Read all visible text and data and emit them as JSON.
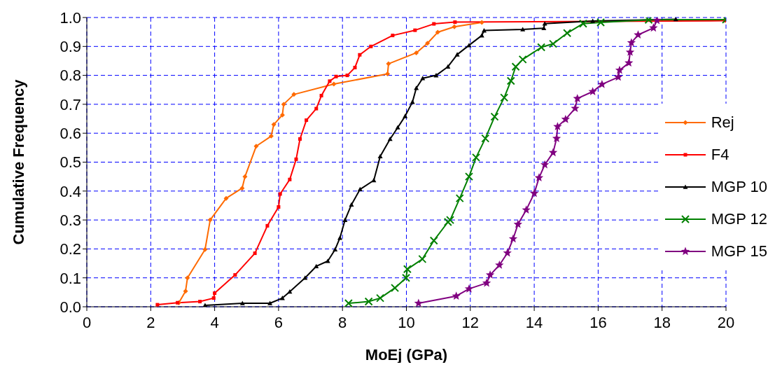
{
  "chart_data": {
    "type": "line",
    "xlabel": "MoEj (GPa)",
    "ylabel": "Cumulative Frequency",
    "xlim": [
      0,
      20
    ],
    "xticks": [
      0,
      2,
      4,
      6,
      8,
      10,
      12,
      14,
      16,
      18,
      20
    ],
    "ylim": [
      0,
      1
    ],
    "yticks": [
      {
        "value": 0,
        "label": "0.0"
      },
      {
        "value": 0.1,
        "label": "0.1"
      },
      {
        "value": 0.2,
        "label": "0.2"
      },
      {
        "value": 0.3,
        "label": "0.3"
      },
      {
        "value": 0.4,
        "label": "0.4"
      },
      {
        "value": 0.5,
        "label": "0.5"
      },
      {
        "value": 0.6,
        "label": "0.6"
      },
      {
        "value": 0.7,
        "label": "0.7"
      },
      {
        "value": 0.8,
        "label": "0.8"
      },
      {
        "value": 0.9,
        "label": "0.9"
      },
      {
        "value": 1,
        "label": "1.0"
      }
    ],
    "grid": true,
    "legend": "right",
    "line_style": "solid",
    "series": [
      {
        "name": "Rej",
        "color": "#ff6a00",
        "marker": "diamond",
        "x": [
          2.88,
          3.09,
          3.15,
          3.7,
          3.86,
          4.36,
          4.86,
          4.95,
          5.3,
          5.77,
          5.85,
          6.12,
          6.16,
          6.48,
          7.73,
          9.41,
          9.44,
          10.31,
          10.66,
          10.98,
          11.5,
          12.36
        ],
        "values": [
          0.014,
          0.054,
          0.1,
          0.198,
          0.3,
          0.375,
          0.41,
          0.45,
          0.555,
          0.59,
          0.63,
          0.663,
          0.7,
          0.734,
          0.77,
          0.805,
          0.84,
          0.878,
          0.911,
          0.949,
          0.968,
          0.983
        ]
      },
      {
        "name": "F4",
        "color": "#ff0000",
        "marker": "square",
        "x": [
          2.21,
          2.84,
          3.54,
          3.97,
          4.0,
          4.64,
          5.26,
          5.65,
          6.0,
          6.05,
          6.35,
          6.55,
          6.67,
          6.87,
          7.18,
          7.34,
          7.6,
          7.8,
          8.15,
          8.39,
          8.54,
          8.89,
          9.57,
          10.27,
          10.86,
          11.52,
          20
        ],
        "values": [
          0.007,
          0.014,
          0.018,
          0.03,
          0.047,
          0.11,
          0.185,
          0.28,
          0.345,
          0.39,
          0.44,
          0.51,
          0.58,
          0.645,
          0.685,
          0.73,
          0.78,
          0.796,
          0.8,
          0.827,
          0.871,
          0.9,
          0.938,
          0.956,
          0.978,
          0.984,
          0.989
        ]
      },
      {
        "name": "MGP 10",
        "color": "#000000",
        "marker": "triangle",
        "x": [
          3.7,
          4.87,
          5.73,
          6.12,
          6.35,
          6.83,
          7.18,
          7.54,
          7.77,
          7.92,
          8.08,
          8.28,
          8.55,
          8.98,
          9.18,
          9.49,
          9.73,
          9.96,
          10.19,
          10.31,
          10.51,
          10.93,
          11.3,
          11.59,
          11.96,
          12.36,
          12.43,
          13.64,
          14.3,
          14.33,
          15.83,
          18.43
        ],
        "values": [
          0.005,
          0.012,
          0.012,
          0.03,
          0.052,
          0.1,
          0.14,
          0.158,
          0.198,
          0.238,
          0.3,
          0.353,
          0.406,
          0.437,
          0.52,
          0.58,
          0.62,
          0.659,
          0.708,
          0.756,
          0.79,
          0.8,
          0.83,
          0.872,
          0.904,
          0.938,
          0.955,
          0.959,
          0.963,
          0.979,
          0.988,
          0.994
        ]
      },
      {
        "name": "MGP 12",
        "color": "#008000",
        "marker": "cross",
        "x": [
          8.19,
          8.82,
          9.18,
          9.64,
          9.99,
          10.03,
          10.5,
          10.86,
          11.3,
          11.37,
          11.67,
          11.96,
          12.18,
          12.47,
          12.76,
          13.06,
          13.27,
          13.42,
          13.64,
          14.22,
          14.59,
          15.03,
          15.53,
          16.08,
          17.58,
          20
        ],
        "values": [
          0.012,
          0.018,
          0.03,
          0.065,
          0.1,
          0.13,
          0.165,
          0.229,
          0.293,
          0.3,
          0.375,
          0.45,
          0.516,
          0.582,
          0.657,
          0.723,
          0.781,
          0.83,
          0.855,
          0.897,
          0.909,
          0.946,
          0.979,
          0.983,
          0.992,
          0.993
        ]
      },
      {
        "name": "MGP 15",
        "color": "#800080",
        "marker": "star",
        "x": [
          10.38,
          11.56,
          11.96,
          12.51,
          12.62,
          12.91,
          13.16,
          13.34,
          13.49,
          13.75,
          14.0,
          14.15,
          14.33,
          14.59,
          14.7,
          14.73,
          14.98,
          15.28,
          15.35,
          15.83,
          16.12,
          16.63,
          16.67,
          16.96,
          17.0,
          17.04,
          17.25,
          17.73,
          17.84
        ],
        "values": [
          0.012,
          0.037,
          0.062,
          0.082,
          0.11,
          0.144,
          0.186,
          0.235,
          0.285,
          0.335,
          0.392,
          0.446,
          0.491,
          0.533,
          0.582,
          0.623,
          0.648,
          0.686,
          0.72,
          0.744,
          0.769,
          0.794,
          0.818,
          0.843,
          0.88,
          0.913,
          0.94,
          0.964,
          0.99
        ]
      }
    ]
  }
}
